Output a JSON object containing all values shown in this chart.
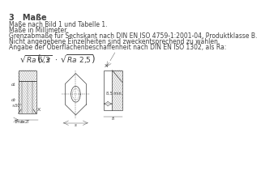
{
  "title": "3   Maße",
  "line1": "Maße nach Bild 1 und Tabelle 1.",
  "line2": "Maße in Millimeter.",
  "line3": "Grenzabmaße für Sechskant nach DIN EN ISO 4759-1:2001-04, Produktklasse B.",
  "line4": "Nicht angegebene Einzelheiten sind zweckentsprechend zu wählen.",
  "line5": "Angabe der Oberflächenbeschaffenheit nach DIN EN ISO 1302, als Ra:",
  "formula": "\\sqrt{Ra\\ 6{,}3} \\left( \\sqrt{z} \\cdot \\sqrt{Ra\\ 2{,}5} \\right)",
  "bg_color": "#ffffff",
  "text_color": "#404040",
  "drawing_color": "#404040",
  "title_fontsize": 7,
  "body_fontsize": 5.5,
  "formula_fontsize": 6.5
}
